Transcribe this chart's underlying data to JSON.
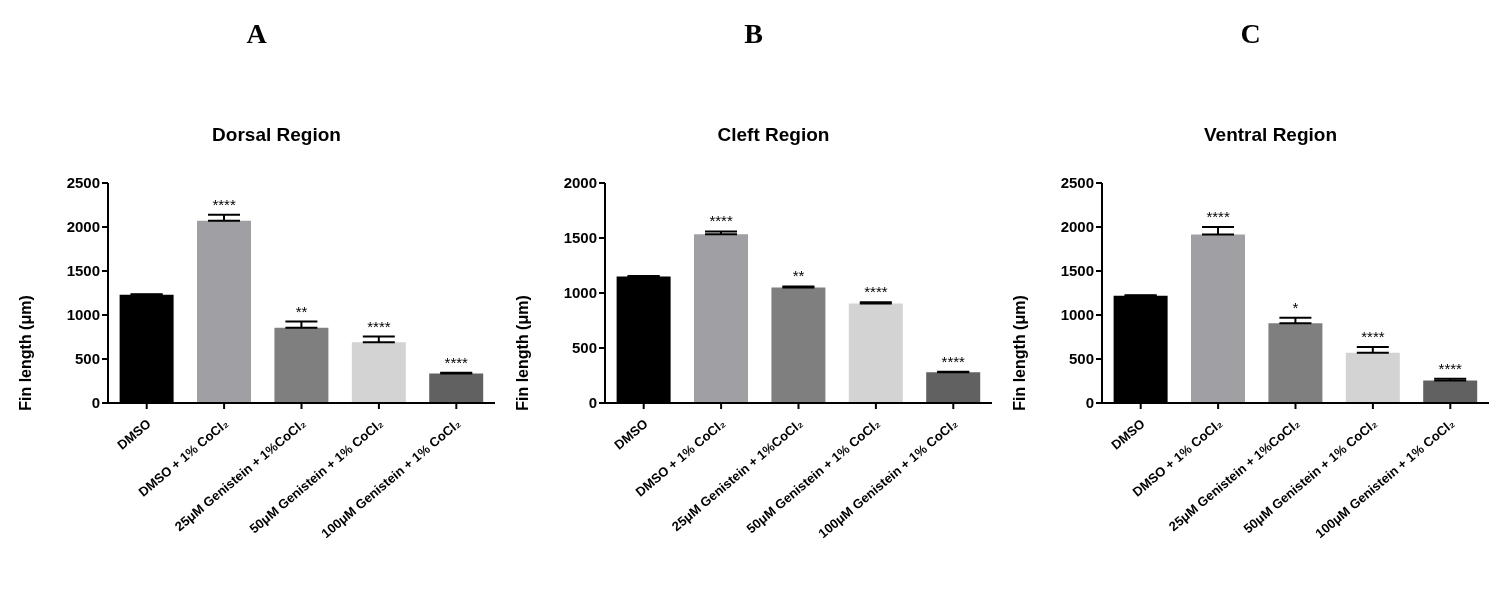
{
  "chart_data": [
    {
      "type": "bar",
      "title": "Dorsal Region",
      "ylabel": "Fin length (μm)",
      "categories": [
        "DMSO",
        "DMSO + 1% CoCl₂",
        "25μM Genistein + 1%CoCl₂",
        "50μM Genistein + 1% CoCl₂",
        "100μM Genistein + 1% CoCl₂"
      ],
      "values": [
        1230,
        2070,
        855,
        690,
        335
      ],
      "errors": [
        [
          1230,
          1235
        ],
        [
          2070,
          2140
        ],
        [
          855,
          925
        ],
        [
          690,
          755
        ],
        [
          335,
          345
        ]
      ],
      "colors": [
        "#000000",
        "#a0a0a4",
        "#7f7f7f",
        "#d3d3d3",
        "#616161"
      ],
      "ylim": [
        0,
        2500
      ],
      "yticks": [
        0,
        500,
        1000,
        1500,
        2000,
        2500
      ],
      "grid": false,
      "legend": false,
      "annotations": [
        "A",
        {
          "text": "****",
          "x": "DMSO + 1% CoCl₂",
          "y": 2140
        },
        {
          "text": "**",
          "x": "25μM Genistein + 1%CoCl₂",
          "y": 925
        },
        {
          "text": "****",
          "x": "50μM Genistein + 1% CoCl₂",
          "y": 755
        },
        {
          "text": "****",
          "x": "100μM Genistein + 1% CoCl₂",
          "y": 345
        }
      ]
    },
    {
      "type": "bar",
      "title": "Cleft Region",
      "ylabel": "Fin length (μm)",
      "categories": [
        "DMSO",
        "DMSO + 1% CoCl₂",
        "25μM Genistein + 1%CoCl₂",
        "50μM Genistein + 1% CoCl₂",
        "100μM Genistein + 1% CoCl₂"
      ],
      "values": [
        1150,
        1535,
        1050,
        905,
        280
      ],
      "errors": [
        [
          1150,
          1155
        ],
        [
          1535,
          1560
        ],
        [
          1050,
          1060
        ],
        [
          905,
          915
        ],
        [
          280,
          285
        ]
      ],
      "colors": [
        "#000000",
        "#a0a0a4",
        "#7f7f7f",
        "#d3d3d3",
        "#616161"
      ],
      "ylim": [
        0,
        2000
      ],
      "yticks": [
        0,
        500,
        1000,
        1500,
        2000
      ],
      "grid": false,
      "legend": false,
      "annotations": [
        "B",
        {
          "text": "****",
          "x": "DMSO + 1% CoCl₂",
          "y": 1560
        },
        {
          "text": "**",
          "x": "25μM Genistein + 1%CoCl₂",
          "y": 1060
        },
        {
          "text": "****",
          "x": "50μM Genistein + 1% CoCl₂",
          "y": 915
        },
        {
          "text": "****",
          "x": "100μM Genistein + 1% CoCl₂",
          "y": 285
        }
      ]
    },
    {
      "type": "bar",
      "title": "Ventral Region",
      "ylabel": "Fin length (μm)",
      "categories": [
        "DMSO",
        "DMSO + 1% CoCl₂",
        "25μM Genistein + 1%CoCl₂",
        "50μM Genistein + 1% CoCl₂",
        "100μM Genistein + 1% CoCl₂"
      ],
      "values": [
        1220,
        1915,
        905,
        570,
        255
      ],
      "errors": [
        [
          1220,
          1225
        ],
        [
          1915,
          2000
        ],
        [
          905,
          970
        ],
        [
          570,
          635
        ],
        [
          255,
          275
        ]
      ],
      "colors": [
        "#000000",
        "#a0a0a4",
        "#7f7f7f",
        "#d3d3d3",
        "#616161"
      ],
      "ylim": [
        0,
        2500
      ],
      "yticks": [
        0,
        500,
        1000,
        1500,
        2000,
        2500
      ],
      "grid": false,
      "legend": false,
      "annotations": [
        "C",
        {
          "text": "****",
          "x": "DMSO + 1% CoCl₂",
          "y": 2000
        },
        {
          "text": "*",
          "x": "25μM Genistein + 1%CoCl₂",
          "y": 970
        },
        {
          "text": "****",
          "x": "50μM Genistein + 1% CoCl₂",
          "y": 635
        },
        {
          "text": "****",
          "x": "100μM Genistein + 1% CoCl₂",
          "y": 275
        }
      ]
    }
  ]
}
